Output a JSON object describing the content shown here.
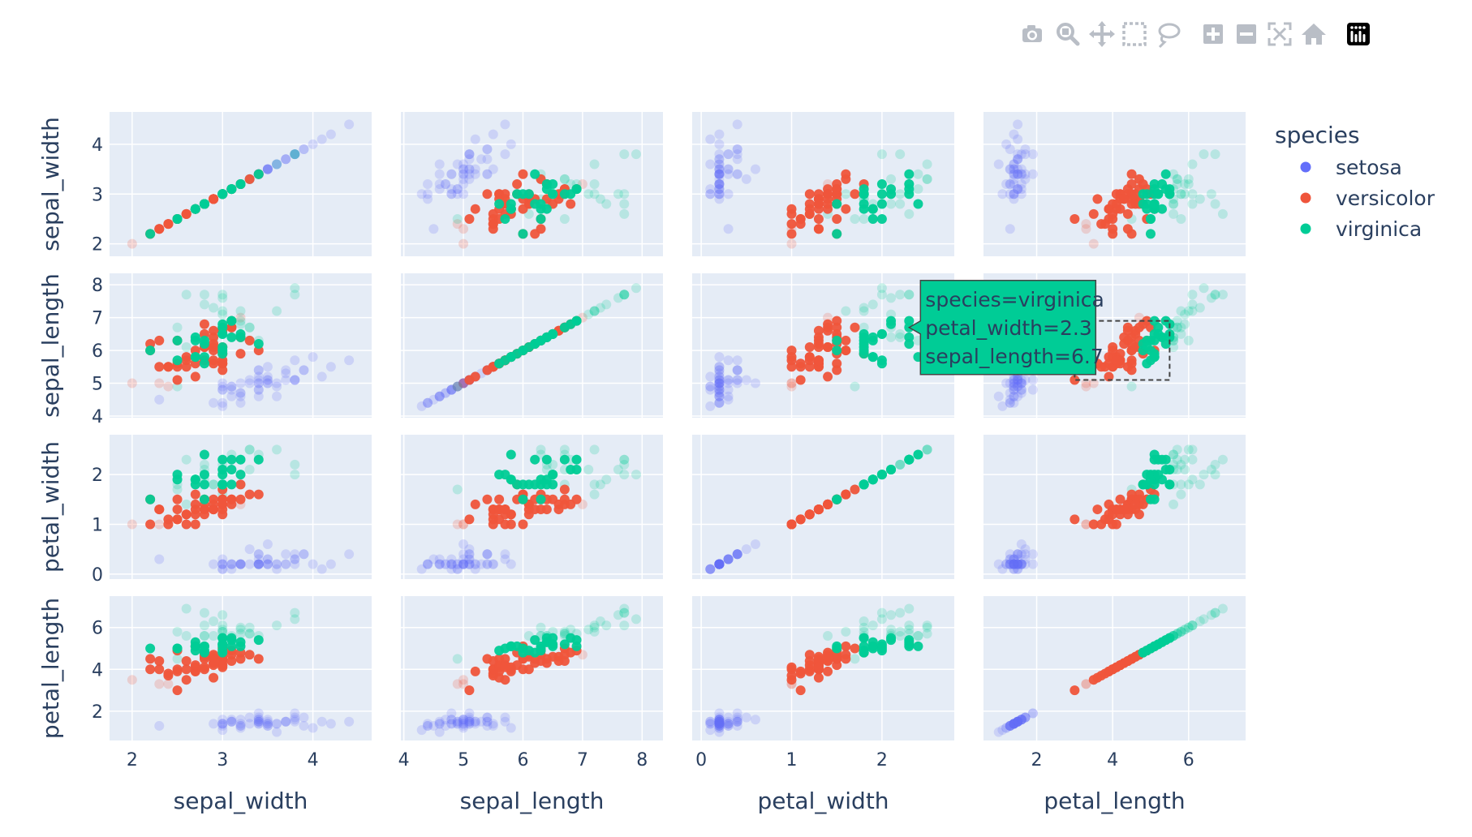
{
  "modebar": {
    "buttons": [
      {
        "name": "camera-icon"
      },
      {
        "name": "zoom-icon"
      },
      {
        "name": "pan-icon"
      },
      {
        "name": "box-select-icon"
      },
      {
        "name": "lasso-select-icon"
      },
      {
        "name": "zoom-in-icon"
      },
      {
        "name": "zoom-out-icon"
      },
      {
        "name": "autoscale-icon"
      },
      {
        "name": "reset-axes-icon"
      },
      {
        "name": "plotly-logo-icon"
      }
    ]
  },
  "chart_data": {
    "type": "scatter",
    "subtype": "scatter-matrix",
    "dimensions": [
      "sepal_width",
      "sepal_length",
      "petal_width",
      "petal_length"
    ],
    "axis_ranges": {
      "sepal_width": [
        1.75,
        4.65
      ],
      "sepal_length": [
        3.95,
        8.35
      ],
      "petal_width": [
        -0.1,
        2.8
      ],
      "petal_length": [
        0.6,
        7.5
      ]
    },
    "ticks": {
      "sepal_width": [
        2,
        3,
        4
      ],
      "sepal_length": [
        4,
        5,
        6,
        7,
        8
      ],
      "petal_width": [
        0,
        1,
        2
      ],
      "petal_length": [
        2,
        4,
        6
      ]
    },
    "legend": {
      "title": "species",
      "placement": "right",
      "entries": [
        {
          "name": "setosa",
          "color": "#636efa"
        },
        {
          "name": "versicolor",
          "color": "#EF553B"
        },
        {
          "name": "virginica",
          "color": "#00cc96"
        }
      ]
    },
    "colors": {
      "background": "#e5ecf6",
      "grid": "#ffffff",
      "text": "#2a3f5f"
    },
    "selection": {
      "axis_x": "petal_length",
      "axis_y": "sepal_length",
      "x_range": [
        3.0,
        5.5
      ],
      "y_range": [
        5.1,
        6.9
      ]
    },
    "hover": {
      "subplot_x": "petal_width",
      "subplot_y": "sepal_length",
      "x": 2.3,
      "y": 6.7,
      "lines": [
        "species=virginica",
        "petal_width=2.3",
        "sepal_length=6.7"
      ]
    },
    "series": [
      {
        "name": "setosa",
        "color": "#636efa",
        "points": [
          [
            3.5,
            5.1,
            0.2,
            1.4
          ],
          [
            3.0,
            4.9,
            0.2,
            1.4
          ],
          [
            3.2,
            4.7,
            0.2,
            1.3
          ],
          [
            3.1,
            4.6,
            0.2,
            1.5
          ],
          [
            3.6,
            5.0,
            0.2,
            1.4
          ],
          [
            3.9,
            5.4,
            0.4,
            1.7
          ],
          [
            3.4,
            4.6,
            0.3,
            1.4
          ],
          [
            3.4,
            5.0,
            0.2,
            1.5
          ],
          [
            2.9,
            4.4,
            0.2,
            1.4
          ],
          [
            3.1,
            4.9,
            0.1,
            1.5
          ],
          [
            3.7,
            5.4,
            0.2,
            1.5
          ],
          [
            3.4,
            4.8,
            0.2,
            1.6
          ],
          [
            3.0,
            4.8,
            0.1,
            1.4
          ],
          [
            3.0,
            4.3,
            0.1,
            1.1
          ],
          [
            4.0,
            5.8,
            0.2,
            1.2
          ],
          [
            4.4,
            5.7,
            0.4,
            1.5
          ],
          [
            3.9,
            5.4,
            0.4,
            1.3
          ],
          [
            3.5,
            5.1,
            0.3,
            1.4
          ],
          [
            3.8,
            5.7,
            0.3,
            1.7
          ],
          [
            3.8,
            5.1,
            0.3,
            1.5
          ],
          [
            3.4,
            5.4,
            0.2,
            1.7
          ],
          [
            3.7,
            5.1,
            0.4,
            1.5
          ],
          [
            3.6,
            4.6,
            0.2,
            1.0
          ],
          [
            3.3,
            5.1,
            0.5,
            1.7
          ],
          [
            3.4,
            4.8,
            0.2,
            1.9
          ],
          [
            3.0,
            5.0,
            0.2,
            1.6
          ],
          [
            3.4,
            5.0,
            0.4,
            1.6
          ],
          [
            3.5,
            5.2,
            0.2,
            1.5
          ],
          [
            3.4,
            5.2,
            0.2,
            1.4
          ],
          [
            3.2,
            4.7,
            0.2,
            1.6
          ],
          [
            3.1,
            4.8,
            0.2,
            1.6
          ],
          [
            3.4,
            5.4,
            0.4,
            1.5
          ],
          [
            4.1,
            5.2,
            0.1,
            1.5
          ],
          [
            4.2,
            5.5,
            0.2,
            1.4
          ],
          [
            3.1,
            4.9,
            0.2,
            1.5
          ],
          [
            3.2,
            5.0,
            0.2,
            1.2
          ],
          [
            3.5,
            5.5,
            0.2,
            1.3
          ],
          [
            3.6,
            4.9,
            0.1,
            1.4
          ],
          [
            3.0,
            4.4,
            0.2,
            1.3
          ],
          [
            3.4,
            5.1,
            0.2,
            1.5
          ],
          [
            3.5,
            5.0,
            0.3,
            1.3
          ],
          [
            2.3,
            4.5,
            0.3,
            1.3
          ],
          [
            3.2,
            4.4,
            0.2,
            1.3
          ],
          [
            3.5,
            5.0,
            0.6,
            1.6
          ],
          [
            3.8,
            5.1,
            0.4,
            1.9
          ],
          [
            3.0,
            4.8,
            0.3,
            1.4
          ],
          [
            3.8,
            5.1,
            0.2,
            1.6
          ],
          [
            3.2,
            4.6,
            0.2,
            1.4
          ],
          [
            3.7,
            5.3,
            0.2,
            1.5
          ],
          [
            3.3,
            5.0,
            0.2,
            1.4
          ]
        ]
      },
      {
        "name": "versicolor",
        "color": "#EF553B",
        "points": [
          [
            3.2,
            7.0,
            1.4,
            4.7
          ],
          [
            3.2,
            6.4,
            1.5,
            4.5
          ],
          [
            3.1,
            6.9,
            1.5,
            4.9
          ],
          [
            2.3,
            5.5,
            1.3,
            4.0
          ],
          [
            2.8,
            6.5,
            1.5,
            4.6
          ],
          [
            2.8,
            5.7,
            1.3,
            4.5
          ],
          [
            3.3,
            6.3,
            1.6,
            4.7
          ],
          [
            2.4,
            4.9,
            1.0,
            3.3
          ],
          [
            2.9,
            6.6,
            1.3,
            4.6
          ],
          [
            2.7,
            5.2,
            1.4,
            3.9
          ],
          [
            2.0,
            5.0,
            1.0,
            3.5
          ],
          [
            3.0,
            5.9,
            1.5,
            4.2
          ],
          [
            2.2,
            6.0,
            1.0,
            4.0
          ],
          [
            2.9,
            6.1,
            1.4,
            4.7
          ],
          [
            2.9,
            5.6,
            1.3,
            3.6
          ],
          [
            3.1,
            6.7,
            1.4,
            4.4
          ],
          [
            3.0,
            5.6,
            1.5,
            4.5
          ],
          [
            2.7,
            5.8,
            1.0,
            4.1
          ],
          [
            2.2,
            6.2,
            1.5,
            4.5
          ],
          [
            2.5,
            5.6,
            1.1,
            3.9
          ],
          [
            3.2,
            5.9,
            1.8,
            4.8
          ],
          [
            2.8,
            6.1,
            1.3,
            4.0
          ],
          [
            2.5,
            6.3,
            1.5,
            4.9
          ],
          [
            2.8,
            6.1,
            1.2,
            4.7
          ],
          [
            2.9,
            6.4,
            1.3,
            4.3
          ],
          [
            3.0,
            6.6,
            1.4,
            4.4
          ],
          [
            2.8,
            6.8,
            1.4,
            4.8
          ],
          [
            3.0,
            6.7,
            1.7,
            5.0
          ],
          [
            2.9,
            6.0,
            1.5,
            4.5
          ],
          [
            2.6,
            5.7,
            1.0,
            3.5
          ],
          [
            2.4,
            5.5,
            1.1,
            3.8
          ],
          [
            2.4,
            5.5,
            1.0,
            3.7
          ],
          [
            2.7,
            5.8,
            1.2,
            3.9
          ],
          [
            2.7,
            6.0,
            1.6,
            5.1
          ],
          [
            3.0,
            5.4,
            1.5,
            4.5
          ],
          [
            3.4,
            6.0,
            1.6,
            4.5
          ],
          [
            3.1,
            6.7,
            1.5,
            4.7
          ],
          [
            2.3,
            6.3,
            1.3,
            4.4
          ],
          [
            3.0,
            5.6,
            1.3,
            4.1
          ],
          [
            2.5,
            5.5,
            1.3,
            4.0
          ],
          [
            2.6,
            5.5,
            1.2,
            4.4
          ],
          [
            3.0,
            6.1,
            1.4,
            4.6
          ],
          [
            2.6,
            5.8,
            1.2,
            4.0
          ],
          [
            2.3,
            5.0,
            1.0,
            3.3
          ],
          [
            2.7,
            5.6,
            1.3,
            4.2
          ],
          [
            3.0,
            5.7,
            1.2,
            4.2
          ],
          [
            2.9,
            5.7,
            1.3,
            4.2
          ],
          [
            2.9,
            6.2,
            1.3,
            4.3
          ],
          [
            2.5,
            5.1,
            1.1,
            3.0
          ],
          [
            2.8,
            5.7,
            1.3,
            4.1
          ]
        ]
      },
      {
        "name": "virginica",
        "color": "#00cc96",
        "points": [
          [
            3.3,
            6.3,
            2.5,
            6.0
          ],
          [
            2.7,
            5.8,
            1.9,
            5.1
          ],
          [
            3.0,
            7.1,
            2.1,
            5.9
          ],
          [
            2.9,
            6.3,
            1.8,
            5.6
          ],
          [
            3.0,
            6.5,
            2.2,
            5.8
          ],
          [
            3.0,
            7.6,
            2.1,
            6.6
          ],
          [
            2.5,
            4.9,
            1.7,
            4.5
          ],
          [
            2.9,
            7.3,
            1.8,
            6.3
          ],
          [
            2.5,
            6.7,
            1.8,
            5.8
          ],
          [
            3.6,
            7.2,
            2.5,
            6.1
          ],
          [
            3.2,
            6.5,
            2.0,
            5.1
          ],
          [
            2.7,
            6.4,
            1.9,
            5.3
          ],
          [
            3.0,
            6.8,
            2.1,
            5.5
          ],
          [
            2.5,
            5.7,
            2.0,
            5.0
          ],
          [
            2.8,
            5.8,
            2.4,
            5.1
          ],
          [
            3.2,
            6.4,
            2.3,
            5.3
          ],
          [
            3.0,
            6.5,
            1.8,
            5.5
          ],
          [
            3.8,
            7.7,
            2.2,
            6.7
          ],
          [
            2.6,
            7.7,
            2.3,
            6.9
          ],
          [
            2.2,
            6.0,
            1.5,
            5.0
          ],
          [
            3.2,
            6.9,
            2.3,
            5.7
          ],
          [
            2.8,
            5.6,
            2.0,
            4.9
          ],
          [
            2.8,
            7.7,
            2.0,
            6.7
          ],
          [
            2.7,
            6.3,
            1.8,
            4.9
          ],
          [
            3.3,
            6.7,
            2.1,
            5.7
          ],
          [
            3.2,
            7.2,
            1.8,
            6.0
          ],
          [
            2.8,
            6.2,
            1.8,
            4.8
          ],
          [
            3.0,
            6.1,
            1.8,
            4.9
          ],
          [
            2.8,
            6.4,
            2.1,
            5.6
          ],
          [
            3.0,
            7.2,
            1.6,
            5.8
          ],
          [
            2.8,
            7.4,
            1.9,
            6.1
          ],
          [
            3.8,
            7.9,
            2.0,
            6.4
          ],
          [
            2.8,
            6.4,
            2.2,
            5.6
          ],
          [
            2.8,
            6.3,
            1.5,
            5.1
          ],
          [
            2.6,
            6.1,
            1.4,
            5.6
          ],
          [
            3.0,
            7.7,
            2.3,
            6.1
          ],
          [
            3.4,
            6.3,
            2.4,
            5.6
          ],
          [
            3.1,
            6.4,
            1.8,
            5.5
          ],
          [
            3.0,
            6.0,
            1.8,
            4.8
          ],
          [
            3.1,
            6.9,
            2.1,
            5.4
          ],
          [
            3.1,
            6.7,
            2.4,
            5.6
          ],
          [
            3.1,
            6.9,
            2.3,
            5.1
          ],
          [
            2.7,
            5.8,
            1.9,
            5.1
          ],
          [
            3.2,
            6.8,
            2.3,
            5.9
          ],
          [
            3.3,
            6.7,
            2.5,
            5.7
          ],
          [
            3.0,
            6.7,
            2.3,
            5.2
          ],
          [
            2.5,
            6.3,
            1.9,
            5.0
          ],
          [
            3.0,
            6.5,
            2.0,
            5.2
          ],
          [
            3.4,
            6.2,
            2.3,
            5.4
          ],
          [
            3.0,
            5.9,
            1.8,
            5.1
          ]
        ]
      }
    ]
  }
}
